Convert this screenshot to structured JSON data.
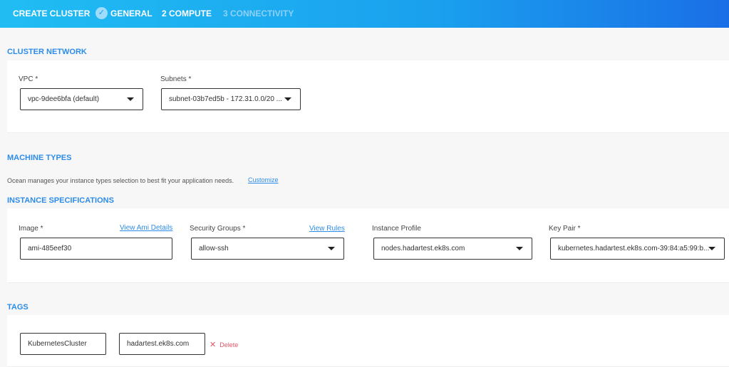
{
  "header": {
    "title": "CREATE CLUSTER",
    "steps": [
      {
        "label": "GENERAL",
        "state": "done"
      },
      {
        "label": "2 COMPUTE",
        "state": "active"
      },
      {
        "label": "3 CONNECTIVITY",
        "state": "disabled"
      }
    ]
  },
  "cluster_network": {
    "title": "CLUSTER NETWORK",
    "vpc_label": "VPC *",
    "vpc_value": "vpc-9dee6bfa (default)",
    "subnets_label": "Subnets *",
    "subnets_value": "subnet-03b7ed5b - 172.31.0.0/20 ..."
  },
  "machine_types": {
    "title": "MACHINE TYPES",
    "description": "Ocean manages your instance types selection to best fit your application needs.",
    "customize": "Customize"
  },
  "instance_specs": {
    "title": "INSTANCE SPECIFICATIONS",
    "image_label": "Image *",
    "image_link": "View Ami Details",
    "image_value": "ami-485eef30",
    "sg_label": "Security Groups *",
    "sg_link": "View Rules",
    "sg_value": "allow-ssh",
    "profile_label": "Instance Profile",
    "profile_value": "nodes.hadartest.ek8s.com",
    "keypair_label": "Key Pair *",
    "keypair_value": "kubernetes.hadartest.ek8s.com-39:84:a5:99:b..."
  },
  "tags": {
    "title": "TAGS",
    "key": "KubernetesCluster",
    "value": "hadartest.ek8s.com",
    "delete": "Delete"
  },
  "colors": {
    "accent": "#2d8ce8",
    "delete": "#e0566b"
  }
}
